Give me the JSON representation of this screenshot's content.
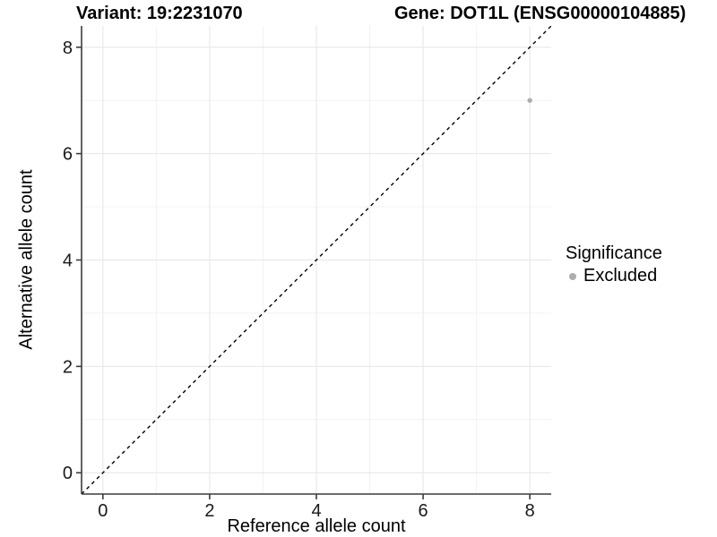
{
  "chart_data": {
    "type": "scatter",
    "title_left": "Variant: 19:2231070",
    "title_right": "Gene: DOT1L (ENSG00000104885)",
    "xlabel": "Reference allele count",
    "ylabel": "Alternative allele count",
    "xlim": [
      -0.4,
      8.4
    ],
    "ylim": [
      -0.4,
      8.4
    ],
    "x_ticks": [
      0,
      2,
      4,
      6,
      8
    ],
    "y_ticks": [
      0,
      2,
      4,
      6,
      8
    ],
    "x_minor_ticks": [
      1,
      3,
      5,
      7
    ],
    "y_minor_ticks": [
      1,
      3,
      5,
      7
    ],
    "grid": "major+minor",
    "identity_line": {
      "style": "dashed",
      "slope": 1,
      "intercept": 0
    },
    "points": [
      {
        "x": 8,
        "y": 7,
        "significance": "Excluded"
      }
    ],
    "legend": {
      "title": "Significance",
      "position": "right",
      "items": [
        {
          "label": "Excluded",
          "color": "#adadad"
        }
      ]
    },
    "colors": {
      "point": "#adadad",
      "grid_major": "#e6e6e6",
      "grid_minor": "#f2f2f2",
      "axis_line": "#3c3c3c",
      "tick_text": "#1a1a1a",
      "identity_line": "#000000"
    }
  }
}
